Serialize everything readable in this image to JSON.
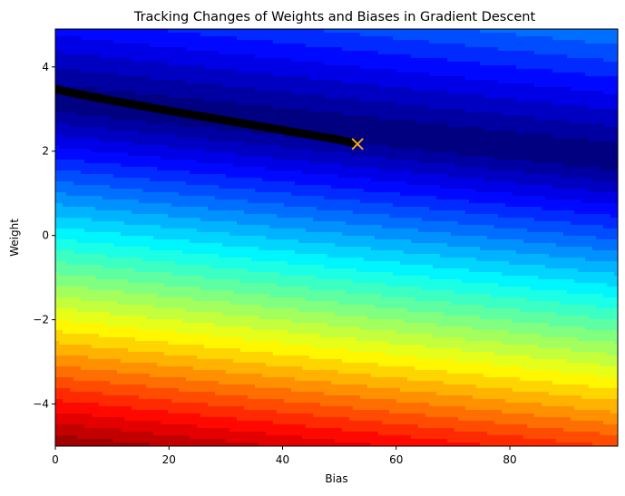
{
  "chart_data": {
    "type": "contour",
    "title": "Tracking Changes of Weights and Biases in Gradient Descent",
    "xlabel": "Bias",
    "ylabel": "Weight",
    "xlim": [
      0,
      99
    ],
    "ylim": [
      -5,
      4.9
    ],
    "x_ticks": [
      0,
      20,
      40,
      60,
      80
    ],
    "x_tick_labels": [
      "0",
      "20",
      "40",
      "60",
      "80"
    ],
    "y_ticks": [
      -4,
      -2,
      0,
      2,
      4
    ],
    "y_tick_labels": [
      "−4",
      "−2",
      "0",
      "2",
      "4"
    ],
    "colormap": "jet",
    "grid": false,
    "legend": "none",
    "loss_surface": {
      "description": "filled contour of loss over bias (x) and weight (y); minimum valley along weight ≈ 3.2 - 0.014*bias",
      "valley": {
        "intercept": 3.2,
        "slope": -0.014
      },
      "levels": 30
    },
    "descent_path": {
      "color": "#000000",
      "points": [
        [
          0,
          3.47
        ],
        [
          5,
          3.33
        ],
        [
          10,
          3.2
        ],
        [
          20,
          2.96
        ],
        [
          30,
          2.73
        ],
        [
          40,
          2.5
        ],
        [
          50,
          2.27
        ],
        [
          53.2,
          2.17
        ]
      ]
    },
    "final_point": {
      "x": 53.2,
      "y": 2.17,
      "marker": "x",
      "color": "#f5a623"
    }
  }
}
